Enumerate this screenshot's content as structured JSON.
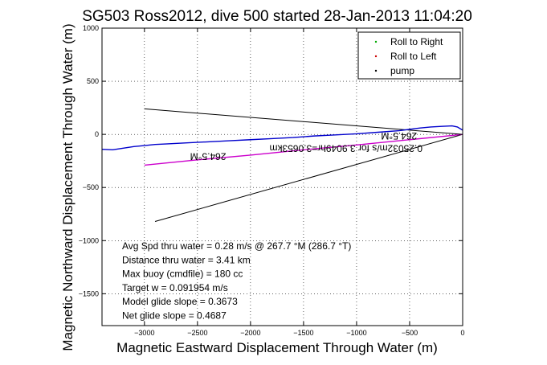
{
  "chart_data": {
    "type": "line",
    "title": "SG503 Ross2012, dive 500 started 28-Jan-2013 11:04:20",
    "xlabel": "Magnetic Eastward Displacement Through Water (m)",
    "ylabel": "Magnetic Northward Displacement Through Water (m)",
    "xlim": [
      -3400,
      0
    ],
    "ylim": [
      -1800,
      1000
    ],
    "xticks": [
      -3000,
      -2500,
      -2000,
      -1500,
      -1000,
      -500,
      0
    ],
    "xtick_labels": [
      "−3000",
      "−2500",
      "−2000",
      "−1500",
      "−1000",
      "−500",
      "0"
    ],
    "yticks": [
      -1500,
      -1000,
      -500,
      0,
      500,
      1000
    ],
    "ytick_labels": [
      "−1500",
      "−1000",
      "−500",
      "0",
      "500",
      "1000"
    ],
    "grid": true,
    "legend_position": "top-right",
    "legend": [
      {
        "label": "Roll to Right",
        "color": "#00aa00"
      },
      {
        "label": "Roll to Left",
        "color": "#cc0000"
      },
      {
        "label": "pump",
        "color": "#000000"
      }
    ],
    "series": [
      {
        "name": "track",
        "color": "#0000cc",
        "x": [
          -3400,
          -3300,
          -3200,
          -3100,
          -3000,
          -2900,
          -2800,
          -2600,
          -2400,
          -2200,
          -2000,
          -1800,
          -1600,
          -1400,
          -1200,
          -1000,
          -800,
          -600,
          -400,
          -300,
          -200,
          -100,
          -50,
          0
        ],
        "y": [
          -140,
          -145,
          -130,
          -115,
          -105,
          -95,
          -90,
          -80,
          -70,
          -60,
          -50,
          -40,
          -30,
          -15,
          -5,
          5,
          20,
          35,
          60,
          70,
          75,
          80,
          70,
          40
        ]
      },
      {
        "name": "Roll to Left",
        "color": "#cc00cc",
        "x": [
          -3000,
          -2500,
          -2000,
          -1500,
          -1000,
          -500,
          0
        ],
        "y": [
          -290,
          -240,
          -195,
          -145,
          -100,
          -50,
          0
        ]
      }
    ],
    "reference_lines": [
      {
        "color": "#000000",
        "x": [
          -3000,
          0
        ],
        "y": [
          240,
          0
        ]
      },
      {
        "color": "#000000",
        "x": [
          -2900,
          0
        ],
        "y": [
          -820,
          0
        ]
      }
    ],
    "annotations": [
      {
        "text": "264.5°M",
        "x": -2400,
        "y": -175,
        "rotate": 180
      },
      {
        "text": "264.5°M",
        "x": -600,
        "y": 15,
        "rotate": 180
      },
      {
        "text": "0.25032m/s for 3.9049hr=3.0653km",
        "x": -1100,
        "y": -100,
        "rotate": 180
      }
    ],
    "summary": [
      "Avg Spd thru water = 0.28 m/s @ 267.7  °M (286.7 °T)",
      "Distance thru water = 3.41 km",
      "Max buoy (cmdfile) = 180 cc",
      "Target w = 0.091954 m/s",
      "Model glide slope = 0.3673",
      "Net glide slope = 0.4687"
    ]
  }
}
